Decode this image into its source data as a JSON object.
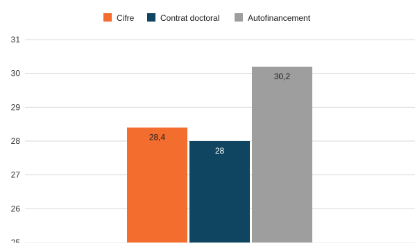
{
  "chart_data": {
    "type": "bar",
    "categories": [
      ""
    ],
    "series": [
      {
        "name": "Cifre",
        "values": [
          28.4
        ],
        "value_labels": [
          "28,4"
        ],
        "color": "#f26d2e",
        "label_color": "#222222"
      },
      {
        "name": "Contrat doctoral",
        "values": [
          28
        ],
        "value_labels": [
          "28"
        ],
        "color": "#0f4560",
        "label_color": "#ffffff"
      },
      {
        "name": "Autofinancement",
        "values": [
          30.2
        ],
        "value_labels": [
          "30,2"
        ],
        "color": "#9e9e9e",
        "label_color": "#222222"
      }
    ],
    "y_ticks": [
      "25",
      "26",
      "27",
      "28",
      "29",
      "30",
      "31"
    ],
    "ylim": [
      25,
      31
    ],
    "grid": true,
    "legend_position": "top-center",
    "title": "",
    "xlabel": "",
    "ylabel": ""
  }
}
